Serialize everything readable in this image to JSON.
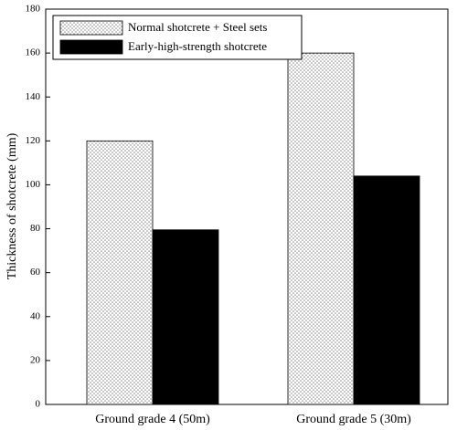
{
  "chart_data": {
    "type": "bar",
    "y_label": "Thickness of shotcrete (mm)",
    "categories": [
      "Ground grade 4 (50m)",
      "Ground grade 5 (30m)"
    ],
    "series": [
      {
        "name": "Normal shotcrete + Steel sets",
        "color": "#8a8a8a",
        "pattern": "dots",
        "values": [
          120,
          160
        ]
      },
      {
        "name": "Early-high-strength shotcrete",
        "color": "#000000",
        "values": [
          79.5,
          104
        ]
      }
    ],
    "ylim": [
      0,
      180
    ],
    "yticks": [
      0,
      20,
      40,
      60,
      80,
      100,
      120,
      140,
      160,
      180
    ],
    "legend": "upper left"
  }
}
